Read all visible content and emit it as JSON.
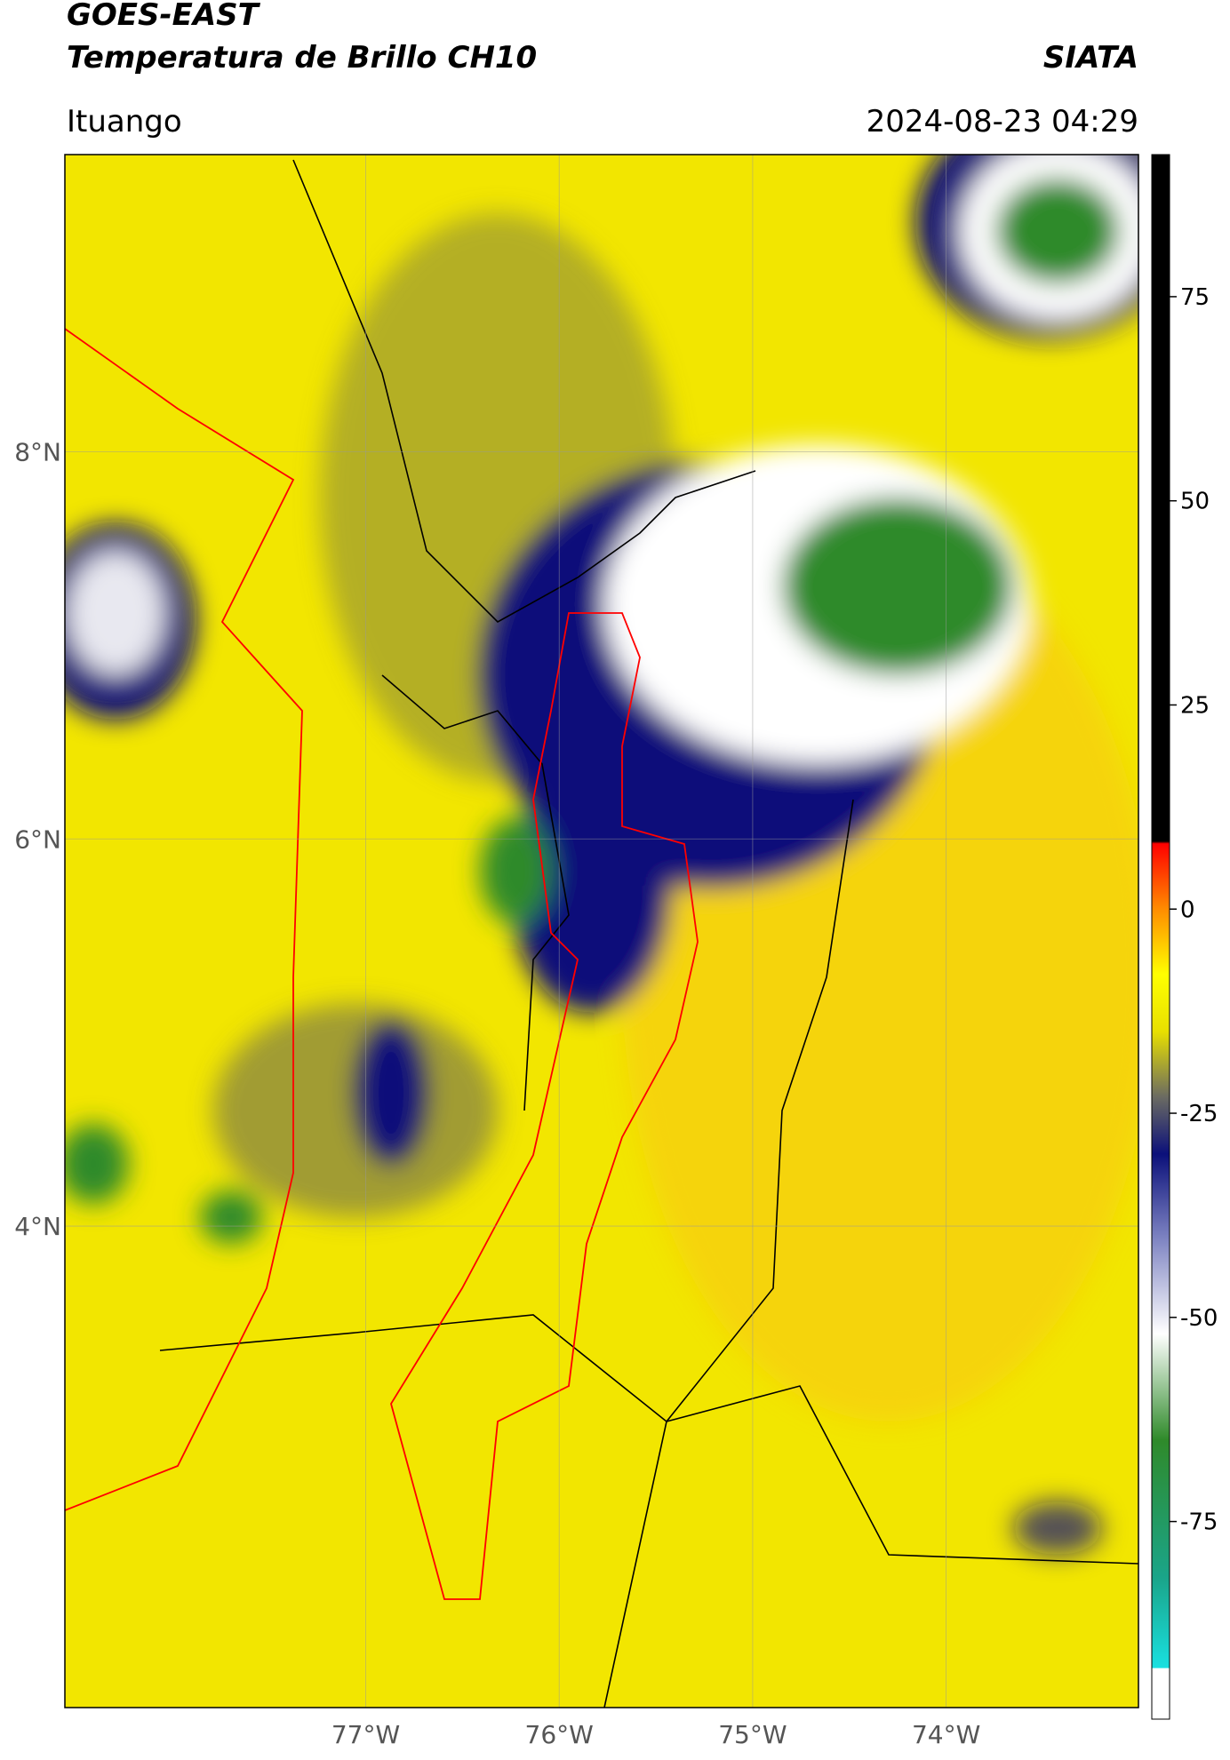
{
  "header": {
    "title": "GOES-EAST",
    "subtitle": "Temperatura de Brillo CH10",
    "source": "SIATA",
    "location": "Ituango",
    "datetime": "2024-08-23 04:29"
  },
  "map": {
    "lon_range": [
      -78.555,
      -73.006
    ],
    "lat_range": [
      1.513,
      9.535
    ],
    "lat_ticks": [
      {
        "value": 8,
        "label": "8°N"
      },
      {
        "value": 6,
        "label": "6°N"
      },
      {
        "value": 4,
        "label": "4°N"
      }
    ],
    "lon_ticks": [
      {
        "value": -77,
        "label": "77°W"
      },
      {
        "value": -76,
        "label": "76°W"
      },
      {
        "value": -75,
        "label": "75°W"
      },
      {
        "value": -74,
        "label": "74°W"
      }
    ],
    "grid": true,
    "background": "#f2e600"
  },
  "colorbar": {
    "range": [
      -99.2,
      92.4
    ],
    "ticks": [
      75,
      50,
      25,
      0,
      -25,
      -50,
      -75
    ],
    "stops": [
      {
        "value": -99.2,
        "color": "#ffffff"
      },
      {
        "value": -93,
        "color": "#ffffff"
      },
      {
        "value": -92.9,
        "color": "#19e0e0"
      },
      {
        "value": -82,
        "color": "#1aa58a"
      },
      {
        "value": -65,
        "color": "#2f8a2a"
      },
      {
        "value": -52,
        "color": "#ffffff"
      },
      {
        "value": -40,
        "color": "#7a80c0"
      },
      {
        "value": -30,
        "color": "#0b107a"
      },
      {
        "value": -23,
        "color": "#6b6b62"
      },
      {
        "value": -15,
        "color": "#e8e000"
      },
      {
        "value": -8,
        "color": "#ffff00"
      },
      {
        "value": 0,
        "color": "#ff8c00"
      },
      {
        "value": 8,
        "color": "#ff0000"
      },
      {
        "value": 8.3,
        "color": "#000000"
      },
      {
        "value": 92.4,
        "color": "#000000"
      }
    ]
  }
}
